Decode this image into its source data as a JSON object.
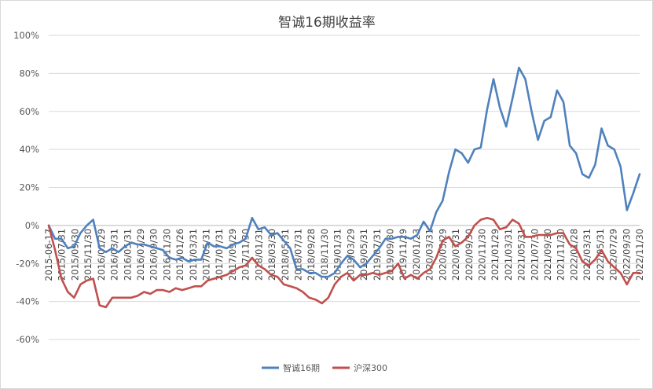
{
  "chart_data": {
    "type": "line",
    "title": "智诚16期收益率",
    "xlabel": "",
    "ylabel": "",
    "ylim": [
      -0.6,
      1.0
    ],
    "yticks": [
      -0.6,
      -0.4,
      -0.2,
      0,
      0.2,
      0.4,
      0.6,
      0.8,
      1.0
    ],
    "ytick_labels": [
      "-60%",
      "-40%",
      "-20%",
      "0%",
      "20%",
      "40%",
      "60%",
      "80%",
      "100%"
    ],
    "grid": true,
    "legend_position": "bottom",
    "xtick_labels": [
      "2015-06-17",
      "2015/07/31",
      "2015/09/30",
      "2015/11/30",
      "2016/01/29",
      "2016/03/31",
      "2016/05/31",
      "2016/07/29",
      "2016/09/30",
      "2016/11/30",
      "2017/01/26",
      "2017/03/31",
      "2017/05/31",
      "2017/07/31",
      "2017/09/29",
      "2017/11/30",
      "2018/01/31",
      "2018/03/30",
      "2018/05/31",
      "2018/07/31",
      "2018/09/28",
      "2018/11/30",
      "2019/01/31",
      "2019/03/29",
      "2019/05/31",
      "2019/07/31",
      "2019/09/30",
      "2019/11/29",
      "2020/01/23",
      "2020/03/31",
      "2020/05/29",
      "2020/07/31",
      "2020/09/30",
      "2020/11/30",
      "2021/01/29",
      "2021/03/31",
      "2021/05/31",
      "2021/07/30",
      "2021/09/30",
      "2021/11/30",
      "2022/01/28",
      "2022/03/31",
      "2022/05/31",
      "2022/07/29",
      "2022/09/30",
      "2022/11/30"
    ],
    "series": [
      {
        "name": "智诚16期",
        "color": "#4f81bd",
        "values": [
          0.0,
          -0.07,
          -0.07,
          -0.12,
          -0.11,
          -0.04,
          0.0,
          0.03,
          -0.12,
          -0.14,
          -0.12,
          -0.14,
          -0.11,
          -0.09,
          -0.1,
          -0.1,
          -0.11,
          -0.12,
          -0.13,
          -0.17,
          -0.18,
          -0.17,
          -0.19,
          -0.18,
          -0.18,
          -0.09,
          -0.11,
          -0.11,
          -0.12,
          -0.1,
          -0.09,
          -0.07,
          0.04,
          -0.02,
          -0.01,
          -0.05,
          -0.04,
          -0.08,
          -0.12,
          -0.23,
          -0.23,
          -0.25,
          -0.25,
          -0.27,
          -0.27,
          -0.25,
          -0.2,
          -0.16,
          -0.18,
          -0.22,
          -0.2,
          -0.16,
          -0.12,
          -0.07,
          -0.07,
          -0.06,
          -0.06,
          -0.07,
          -0.05,
          0.02,
          -0.03,
          0.07,
          0.13,
          0.28,
          0.4,
          0.38,
          0.33,
          0.4,
          0.41,
          0.61,
          0.77,
          0.62,
          0.52,
          0.67,
          0.83,
          0.77,
          0.6,
          0.45,
          0.55,
          0.57,
          0.71,
          0.65,
          0.42,
          0.38,
          0.27,
          0.25,
          0.32,
          0.51,
          0.42,
          0.4,
          0.31,
          0.08,
          0.17,
          0.27
        ]
      },
      {
        "name": "沪深300",
        "color": "#c0504d",
        "values": [
          0.0,
          -0.13,
          -0.28,
          -0.35,
          -0.38,
          -0.31,
          -0.29,
          -0.28,
          -0.42,
          -0.43,
          -0.38,
          -0.38,
          -0.38,
          -0.38,
          -0.37,
          -0.35,
          -0.36,
          -0.34,
          -0.34,
          -0.35,
          -0.33,
          -0.34,
          -0.33,
          -0.32,
          -0.32,
          -0.29,
          -0.28,
          -0.27,
          -0.26,
          -0.24,
          -0.22,
          -0.21,
          -0.17,
          -0.21,
          -0.23,
          -0.26,
          -0.27,
          -0.31,
          -0.32,
          -0.33,
          -0.35,
          -0.38,
          -0.39,
          -0.41,
          -0.38,
          -0.31,
          -0.27,
          -0.25,
          -0.29,
          -0.26,
          -0.26,
          -0.25,
          -0.26,
          -0.25,
          -0.24,
          -0.2,
          -0.28,
          -0.26,
          -0.28,
          -0.25,
          -0.23,
          -0.17,
          -0.08,
          -0.06,
          -0.11,
          -0.09,
          -0.06,
          0.0,
          0.03,
          0.04,
          0.03,
          -0.02,
          -0.01,
          0.03,
          0.01,
          -0.06,
          -0.06,
          -0.05,
          -0.05,
          -0.05,
          -0.04,
          -0.04,
          -0.1,
          -0.12,
          -0.19,
          -0.21,
          -0.18,
          -0.13,
          -0.19,
          -0.22,
          -0.25,
          -0.31,
          -0.25,
          -0.25
        ]
      }
    ]
  }
}
